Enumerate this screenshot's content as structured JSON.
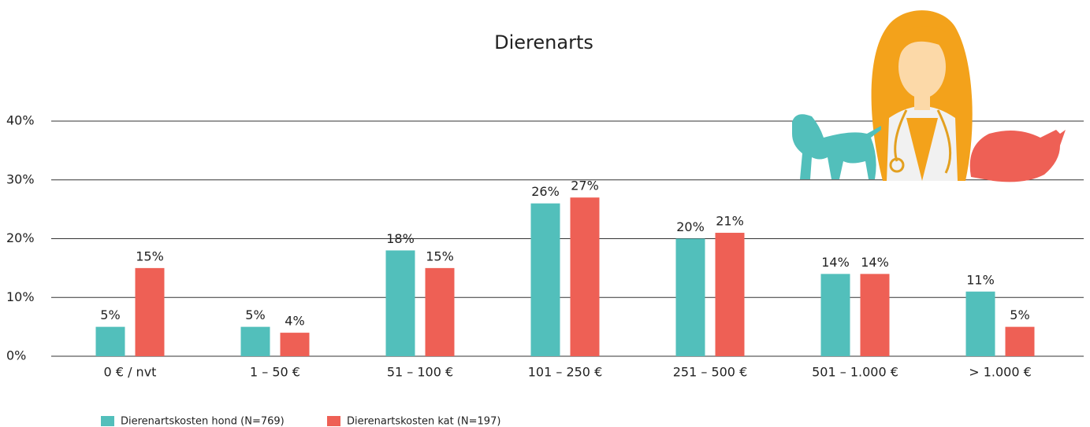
{
  "chart_data": {
    "type": "bar",
    "title": "Dierenarts",
    "categories": [
      "0 € / nvt",
      "1 – 50 €",
      "51 – 100 €",
      "101 – 250 €",
      "251 – 500 €",
      "501 – 1.000 €",
      "> 1.000 €"
    ],
    "series": [
      {
        "name": "Dierenartskosten hond (N=769)",
        "color": "#52bfbb",
        "values": [
          5,
          5,
          18,
          26,
          20,
          14,
          11
        ],
        "value_labels": [
          "5%",
          "5%",
          "18%",
          "26%",
          "20%",
          "14%",
          "11%"
        ]
      },
      {
        "name": "Dierenartskosten kat (N=197)",
        "color": "#ee6055",
        "values": [
          15,
          4,
          15,
          27,
          21,
          14,
          5
        ],
        "value_labels": [
          "15%",
          "4%",
          "15%",
          "27%",
          "21%",
          "14%",
          "5%"
        ]
      }
    ],
    "ylim": [
      0,
      40
    ],
    "yticks": [
      {
        "value": 0,
        "label": "0%"
      },
      {
        "value": 10,
        "label": "10%"
      },
      {
        "value": 20,
        "label": "20%"
      },
      {
        "value": 30,
        "label": "30%"
      },
      {
        "value": 40,
        "label": "40%"
      }
    ],
    "grid": true,
    "legend": "bottom-left"
  }
}
